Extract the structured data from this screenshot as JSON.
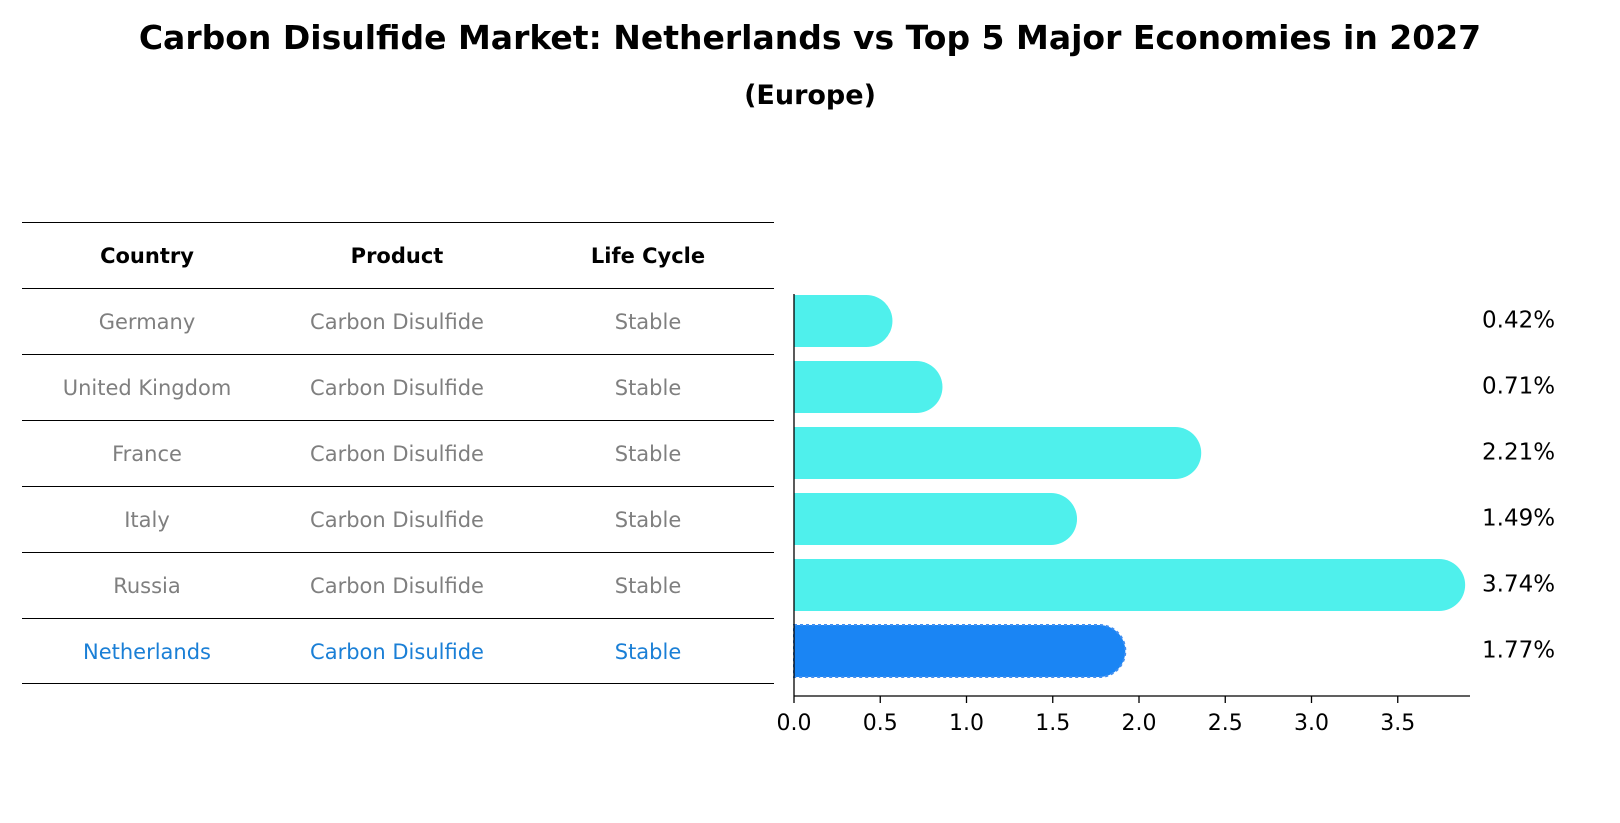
{
  "title": "Carbon Disulfide Market: Netherlands vs Top 5 Major Economies in 2027",
  "subtitle": "(Europe)",
  "table": {
    "headers": [
      "Country",
      "Product",
      "Life Cycle"
    ],
    "rows": [
      [
        "Germany",
        "Carbon Disulfide",
        "Stable"
      ],
      [
        "United Kingdom",
        "Carbon Disulfide",
        "Stable"
      ],
      [
        "France",
        "Carbon Disulfide",
        "Stable"
      ],
      [
        "Italy",
        "Carbon Disulfide",
        "Stable"
      ],
      [
        "Russia",
        "Carbon Disulfide",
        "Stable"
      ],
      [
        "Netherlands",
        "Carbon Disulfide",
        "Stable"
      ]
    ],
    "highlight_row": 5
  },
  "chart_data": {
    "type": "bar",
    "orientation": "horizontal",
    "categories": [
      "Germany",
      "United Kingdom",
      "France",
      "Italy",
      "Russia",
      "Netherlands"
    ],
    "values": [
      0.42,
      0.71,
      2.21,
      1.49,
      3.74,
      1.77
    ],
    "value_labels": [
      "0.42%",
      "0.71%",
      "2.21%",
      "1.49%",
      "3.74%",
      "1.77%"
    ],
    "xticks": [
      "0.0",
      "0.5",
      "1.0",
      "1.5",
      "2.0",
      "2.5",
      "3.0",
      "3.5"
    ],
    "xlim": [
      0,
      3.9
    ],
    "grid": false,
    "colors": {
      "default": "#4ff0ec",
      "highlight": "#1a85f4",
      "highlight_text": "#1a7fd6",
      "muted_text": "#7f7f7f"
    }
  }
}
